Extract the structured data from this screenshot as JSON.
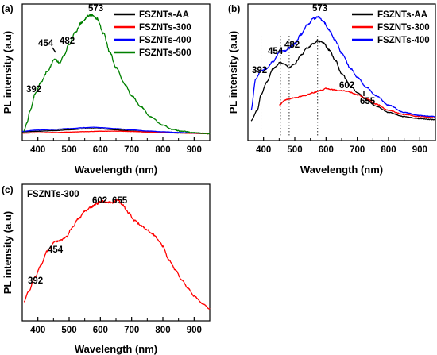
{
  "chart_data": [
    {
      "panel": "(a)",
      "type": "line",
      "xlabel": "Wavelength (nm)",
      "ylabel": "PL intensity (a.u)",
      "xlim": [
        350,
        950
      ],
      "ylim": [
        0,
        1
      ],
      "x_ticks": [
        400,
        500,
        600,
        700,
        800,
        900
      ],
      "y_ticks_shown": false,
      "grid": false,
      "legend_position": "top-right",
      "annotations": [
        "392",
        "454",
        "482",
        "573"
      ],
      "series": [
        {
          "name": "FSZNTs-AA",
          "color": "#000000",
          "x": [
            350,
            400,
            450,
            500,
            550,
            573,
            600,
            650,
            700,
            750,
            800,
            850,
            900,
            950
          ],
          "y": [
            0.045,
            0.05,
            0.055,
            0.062,
            0.07,
            0.072,
            0.07,
            0.062,
            0.052,
            0.045,
            0.04,
            0.036,
            0.033,
            0.03
          ]
        },
        {
          "name": "FSZNTs-300",
          "color": "#ff0000",
          "x": [
            350,
            400,
            450,
            500,
            550,
            600,
            650,
            700,
            750,
            800,
            850,
            900,
            950
          ],
          "y": [
            0.035,
            0.037,
            0.04,
            0.043,
            0.047,
            0.05,
            0.051,
            0.048,
            0.044,
            0.04,
            0.036,
            0.033,
            0.03
          ]
        },
        {
          "name": "FSZNTs-400",
          "color": "#0000ff",
          "x": [
            350,
            400,
            450,
            500,
            550,
            580,
            600,
            650,
            700,
            750,
            800,
            850,
            900,
            950
          ],
          "y": [
            0.05,
            0.06,
            0.066,
            0.072,
            0.08,
            0.083,
            0.08,
            0.072,
            0.062,
            0.052,
            0.046,
            0.04,
            0.036,
            0.033
          ]
        },
        {
          "name": "FSZNTs-500",
          "color": "#008000",
          "x": [
            355,
            365,
            375,
            392,
            410,
            430,
            454,
            470,
            482,
            500,
            520,
            540,
            560,
            573,
            590,
            610,
            630,
            650,
            680,
            700,
            730,
            760,
            800,
            830,
            860,
            900,
            950
          ],
          "y": [
            0.05,
            0.12,
            0.22,
            0.36,
            0.45,
            0.54,
            0.64,
            0.61,
            0.665,
            0.76,
            0.86,
            0.94,
            0.99,
            1.0,
            0.97,
            0.85,
            0.7,
            0.57,
            0.43,
            0.34,
            0.25,
            0.17,
            0.1,
            0.065,
            0.05,
            0.038,
            0.03
          ]
        }
      ]
    },
    {
      "panel": "(b)",
      "type": "line",
      "xlabel": "Wavelength (nm)",
      "ylabel": "PL intensity (a.u)",
      "xlim": [
        350,
        950
      ],
      "ylim": [
        0,
        1
      ],
      "x_ticks": [
        400,
        500,
        600,
        700,
        800,
        900
      ],
      "y_ticks_shown": false,
      "grid": false,
      "legend_position": "top-right",
      "annotations": [
        "392",
        "454",
        "482",
        "573",
        "602",
        "655"
      ],
      "reference_lines_x": [
        392,
        454,
        482,
        573
      ],
      "series": [
        {
          "name": "FSZNTs-AA",
          "color": "#000000",
          "x": [
            360,
            380,
            392,
            410,
            430,
            454,
            470,
            482,
            500,
            520,
            540,
            560,
            573,
            590,
            610,
            630,
            650,
            680,
            700,
            730,
            760,
            800,
            850,
            900,
            950
          ],
          "y": [
            0.0,
            0.1,
            0.25,
            0.37,
            0.5,
            0.56,
            0.54,
            0.51,
            0.55,
            0.63,
            0.7,
            0.74,
            0.77,
            0.75,
            0.68,
            0.58,
            0.45,
            0.33,
            0.27,
            0.2,
            0.14,
            0.08,
            0.04,
            0.02,
            0.01
          ]
        },
        {
          "name": "FSZNTs-300",
          "color": "#ff0000",
          "x": [
            450,
            470,
            482,
            500,
            530,
            560,
            580,
            602,
            620,
            640,
            655,
            670,
            700,
            730,
            760,
            800,
            850,
            900,
            950
          ],
          "y": [
            0.15,
            0.2,
            0.21,
            0.22,
            0.24,
            0.27,
            0.29,
            0.31,
            0.3,
            0.29,
            0.29,
            0.28,
            0.25,
            0.21,
            0.16,
            0.1,
            0.06,
            0.04,
            0.03
          ]
        },
        {
          "name": "FSZNTs-400",
          "color": "#0000ff",
          "x": [
            360,
            375,
            392,
            410,
            430,
            454,
            470,
            482,
            500,
            520,
            540,
            560,
            573,
            590,
            610,
            630,
            650,
            680,
            700,
            730,
            760,
            800,
            850,
            900,
            950
          ],
          "y": [
            0.1,
            0.4,
            0.48,
            0.5,
            0.57,
            0.67,
            0.67,
            0.7,
            0.74,
            0.83,
            0.92,
            0.98,
            1.0,
            0.96,
            0.87,
            0.77,
            0.65,
            0.5,
            0.42,
            0.32,
            0.24,
            0.15,
            0.08,
            0.05,
            0.04
          ]
        }
      ]
    },
    {
      "panel": "(c)",
      "type": "line",
      "xlabel": "Wavelength (nm)",
      "ylabel": "PL intensity (a.u)",
      "xlim": [
        350,
        950
      ],
      "ylim": [
        0,
        1
      ],
      "x_ticks": [
        400,
        500,
        600,
        700,
        800,
        900
      ],
      "y_ticks_shown": false,
      "grid": false,
      "legend_position": "top-left",
      "annotations": [
        "392",
        "454",
        "602",
        "655"
      ],
      "series": [
        {
          "name": "FSZNTs-300",
          "color": "#ff0000",
          "x": [
            355,
            370,
            392,
            410,
            430,
            454,
            470,
            490,
            510,
            530,
            550,
            570,
            590,
            602,
            620,
            640,
            655,
            670,
            690,
            710,
            730,
            750,
            770,
            790,
            800,
            820,
            840,
            860,
            880,
            900,
            930,
            950
          ],
          "y": [
            0.08,
            0.17,
            0.3,
            0.4,
            0.52,
            0.6,
            0.61,
            0.64,
            0.72,
            0.8,
            0.86,
            0.9,
            0.93,
            0.95,
            0.94,
            0.94,
            0.96,
            0.92,
            0.85,
            0.78,
            0.74,
            0.7,
            0.66,
            0.6,
            0.56,
            0.44,
            0.36,
            0.27,
            0.2,
            0.13,
            0.06,
            0.02
          ]
        }
      ]
    }
  ]
}
